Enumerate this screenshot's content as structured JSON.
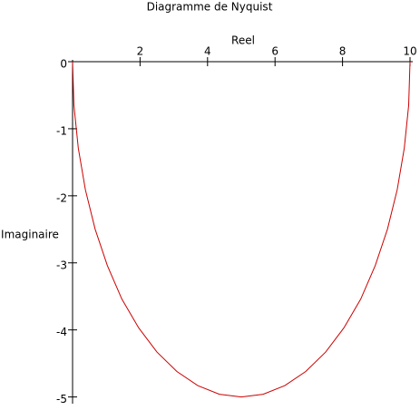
{
  "chart_data": {
    "type": "line",
    "title": "Diagramme de Nyquist",
    "x_label": "Reel",
    "y_label": "Imaginaire",
    "x": [
      10,
      9.96,
      9.83,
      9.62,
      9.33,
      8.97,
      8.54,
      8.04,
      7.5,
      6.91,
      6.29,
      5.65,
      5,
      4.35,
      3.71,
      3.09,
      2.5,
      1.96,
      1.46,
      1.03,
      0.67,
      0.38,
      0.17,
      0.04,
      0
    ],
    "series": [
      {
        "color": "#cc0000",
        "values": [
          0,
          -0.65,
          -1.29,
          -1.91,
          -2.5,
          -3.04,
          -3.54,
          -3.97,
          -4.33,
          -4.62,
          -4.83,
          -4.96,
          -5,
          -4.96,
          -4.83,
          -4.62,
          -4.33,
          -3.97,
          -3.54,
          -3.04,
          -2.5,
          -1.91,
          -1.29,
          -0.65,
          0
        ]
      }
    ],
    "xlim": [
      0,
      10
    ],
    "ylim": [
      -5.1,
      0
    ],
    "xticks": [
      2,
      4,
      6,
      8,
      10
    ],
    "yticks": [
      0,
      -1,
      -2,
      -3,
      -4,
      -5
    ]
  }
}
